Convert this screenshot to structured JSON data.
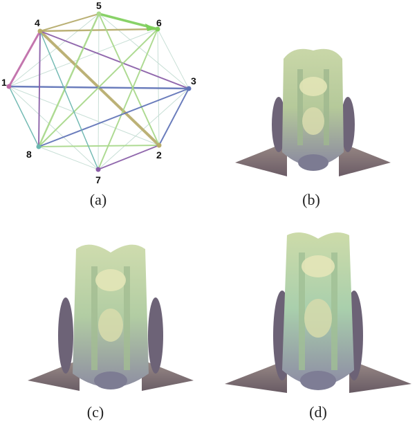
{
  "figure": {
    "captions": {
      "a": "(a)",
      "b": "(b)",
      "c": "(c)",
      "d": "(d)"
    }
  },
  "graph": {
    "nodes": [
      {
        "id": "1",
        "label": "1"
      },
      {
        "id": "2",
        "label": "2"
      },
      {
        "id": "3",
        "label": "3"
      },
      {
        "id": "4",
        "label": "4"
      },
      {
        "id": "5",
        "label": "5"
      },
      {
        "id": "6",
        "label": "6"
      },
      {
        "id": "7",
        "label": "7"
      },
      {
        "id": "8",
        "label": "8"
      }
    ],
    "colors": {
      "green": "#7fcf5a",
      "lightgreen": "#a9d98a",
      "olive": "#b7ab6a",
      "purple": "#8a5ca8",
      "blue": "#5f72b8",
      "teal": "#6bb7b0",
      "pink": "#c06aa8"
    }
  }
}
